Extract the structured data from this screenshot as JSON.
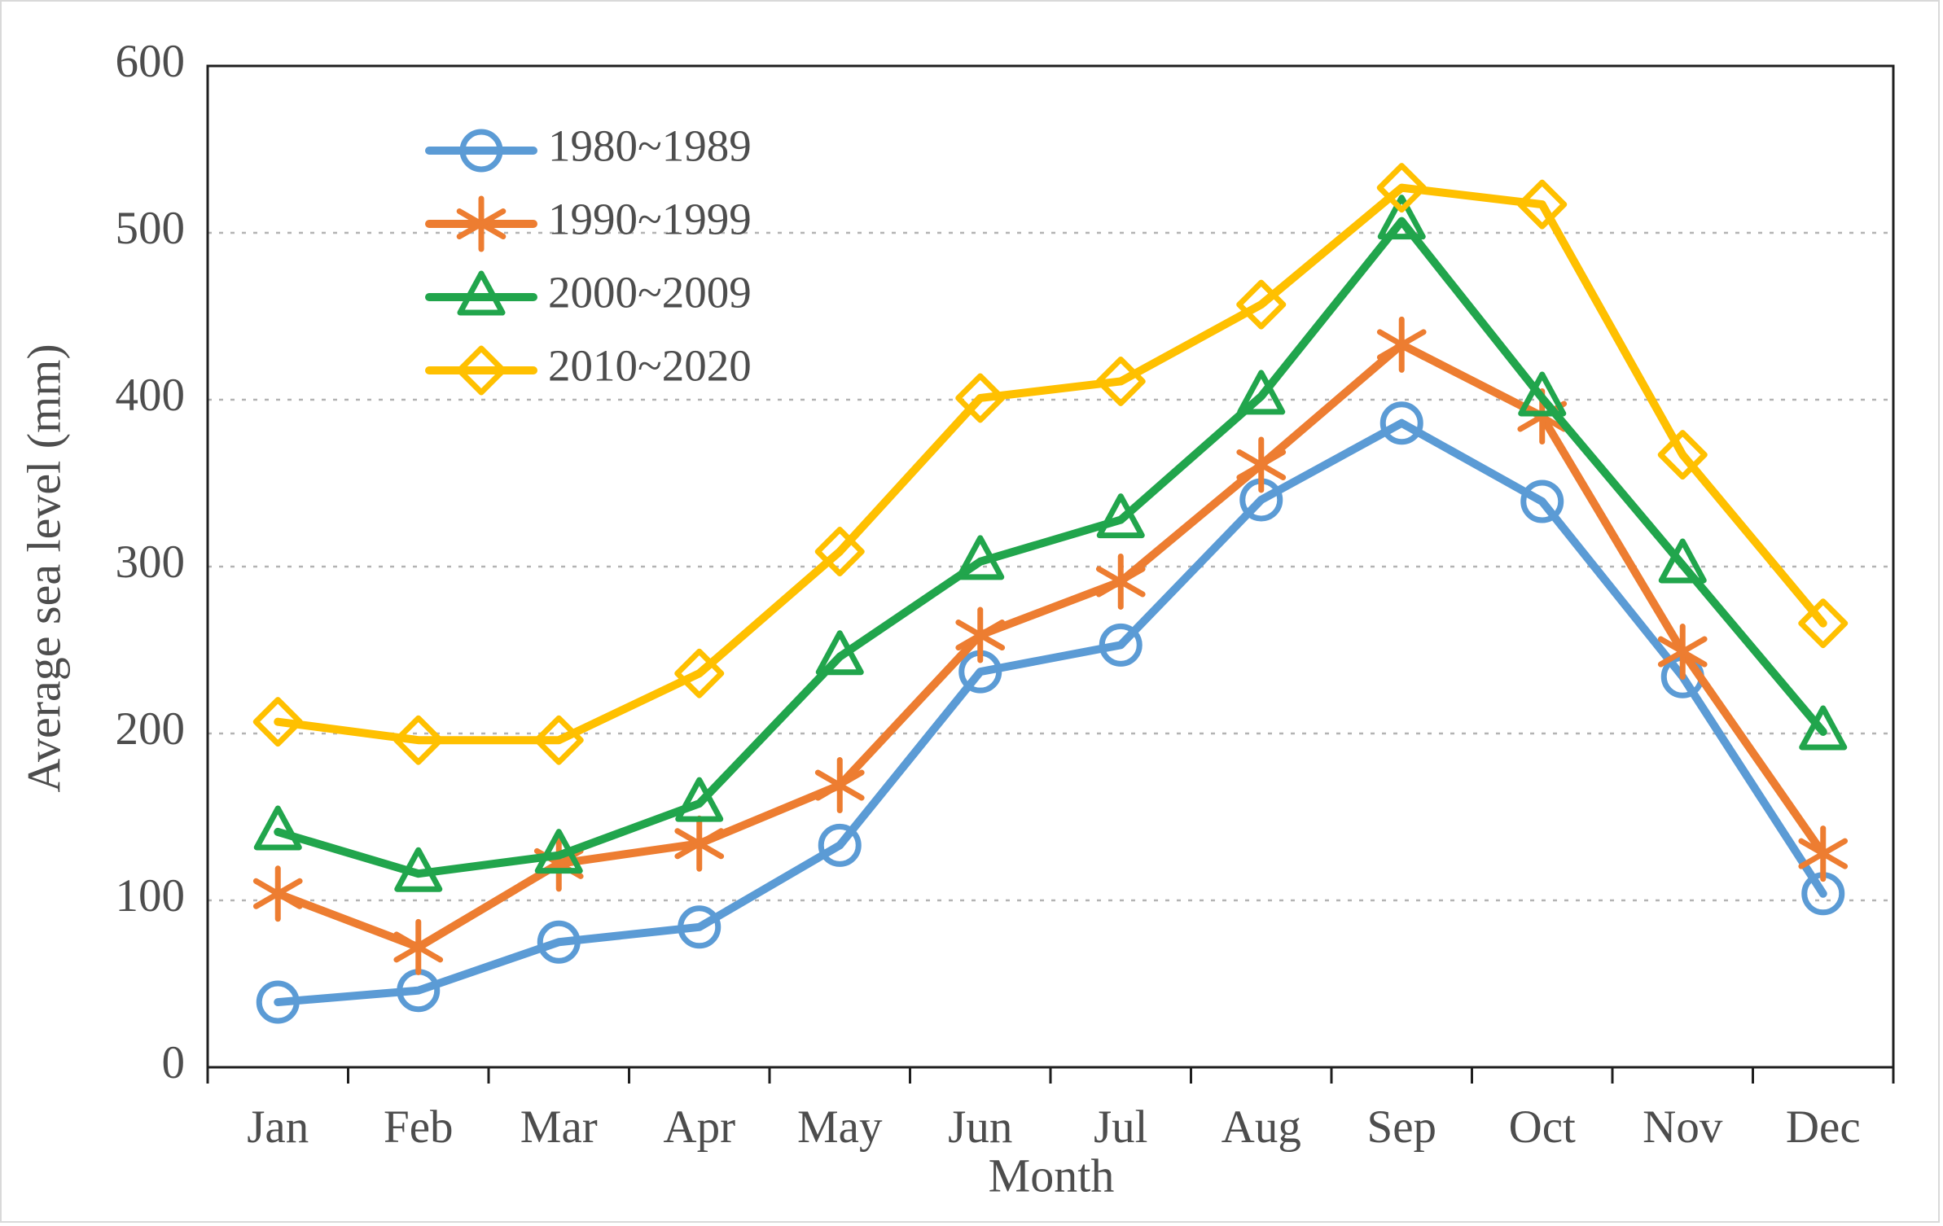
{
  "figure": {
    "background": "#FFFFFF",
    "frame_color": "#D9D9D9",
    "text_color": "#4D4D4D",
    "axis_color": "#1F1F1F",
    "gridline_color": "#B3B3B3"
  },
  "chart_data": {
    "type": "line",
    "title": "",
    "xlabel": "Month",
    "ylabel": "Average sea level (mm)",
    "categories": [
      "Jan",
      "Feb",
      "Mar",
      "Apr",
      "May",
      "Jun",
      "Jul",
      "Aug",
      "Sep",
      "Oct",
      "Nov",
      "Dec"
    ],
    "ylim": [
      0,
      600
    ],
    "ytick_step": 100,
    "grid": "horizontal-dashed",
    "legend_position": "inside-top-left",
    "series": [
      {
        "name": "1980~1989",
        "color": "#5B9BD5",
        "marker": "circle",
        "values": [
          39,
          46,
          75,
          84,
          133,
          237,
          253,
          340,
          386,
          339,
          234,
          104
        ]
      },
      {
        "name": "1990~1999",
        "color": "#ED7D31",
        "marker": "asterisk",
        "values": [
          104,
          72,
          122,
          134,
          169,
          259,
          291,
          361,
          433,
          390,
          249,
          128
        ]
      },
      {
        "name": "2000~2009",
        "color": "#21A54C",
        "marker": "triangle",
        "values": [
          141,
          116,
          127,
          158,
          246,
          303,
          328,
          402,
          507,
          401,
          301,
          201
        ]
      },
      {
        "name": "2010~2020",
        "color": "#FFC000",
        "marker": "diamond",
        "values": [
          207,
          196,
          196,
          236,
          309,
          401,
          411,
          457,
          527,
          517,
          367,
          266
        ]
      }
    ]
  }
}
